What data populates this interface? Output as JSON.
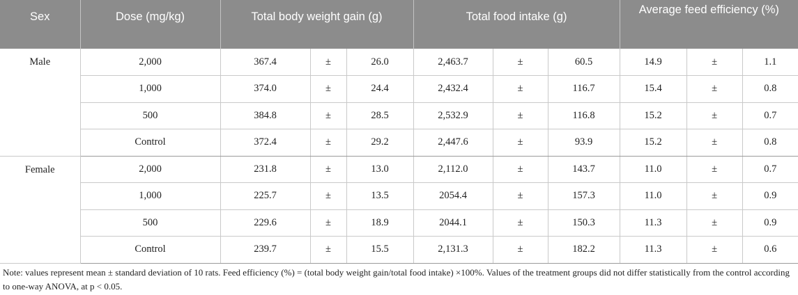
{
  "headers": {
    "sex": "Sex",
    "dose": "Dose (mg/kg)",
    "weight_gain": "Total body weight gain (g)",
    "food_intake": "Total food intake (g)",
    "feed_efficiency": "Average feed efficiency (%)"
  },
  "pm_symbol": "±",
  "groups": [
    {
      "sex": "Male",
      "rows": [
        {
          "dose": "2,000",
          "wg_mean": "367.4",
          "wg_sd": "26.0",
          "fi_mean": "2,463.7",
          "fi_sd": "60.5",
          "fe_mean": "14.9",
          "fe_sd": "1.1"
        },
        {
          "dose": "1,000",
          "wg_mean": "374.0",
          "wg_sd": "24.4",
          "fi_mean": "2,432.4",
          "fi_sd": "116.7",
          "fe_mean": "15.4",
          "fe_sd": "0.8"
        },
        {
          "dose": "500",
          "wg_mean": "384.8",
          "wg_sd": "28.5",
          "fi_mean": "2,532.9",
          "fi_sd": "116.8",
          "fe_mean": "15.2",
          "fe_sd": "0.7"
        },
        {
          "dose": "Control",
          "wg_mean": "372.4",
          "wg_sd": "29.2",
          "fi_mean": "2,447.6",
          "fi_sd": "93.9",
          "fe_mean": "15.2",
          "fe_sd": "0.8"
        }
      ]
    },
    {
      "sex": "Female",
      "rows": [
        {
          "dose": "2,000",
          "wg_mean": "231.8",
          "wg_sd": "13.0",
          "fi_mean": "2,112.0",
          "fi_sd": "143.7",
          "fe_mean": "11.0",
          "fe_sd": "0.7"
        },
        {
          "dose": "1,000",
          "wg_mean": "225.7",
          "wg_sd": "13.5",
          "fi_mean": "2054.4",
          "fi_sd": "157.3",
          "fe_mean": "11.0",
          "fe_sd": "0.9"
        },
        {
          "dose": "500",
          "wg_mean": "229.6",
          "wg_sd": "18.9",
          "fi_mean": "2044.1",
          "fi_sd": "150.3",
          "fe_mean": "11.3",
          "fe_sd": "0.9"
        },
        {
          "dose": "Control",
          "wg_mean": "239.7",
          "wg_sd": "15.5",
          "fi_mean": "2,131.3",
          "fi_sd": "182.2",
          "fe_mean": "11.3",
          "fe_sd": "0.6"
        }
      ]
    }
  ],
  "note": "Note: values represent mean ± standard deviation of 10 rats. Feed efficiency (%) = (total body weight gain/total food intake) ×100%. Values of the treatment groups did not differ statistically from the control according to one-way ANOVA, at p < 0.05."
}
